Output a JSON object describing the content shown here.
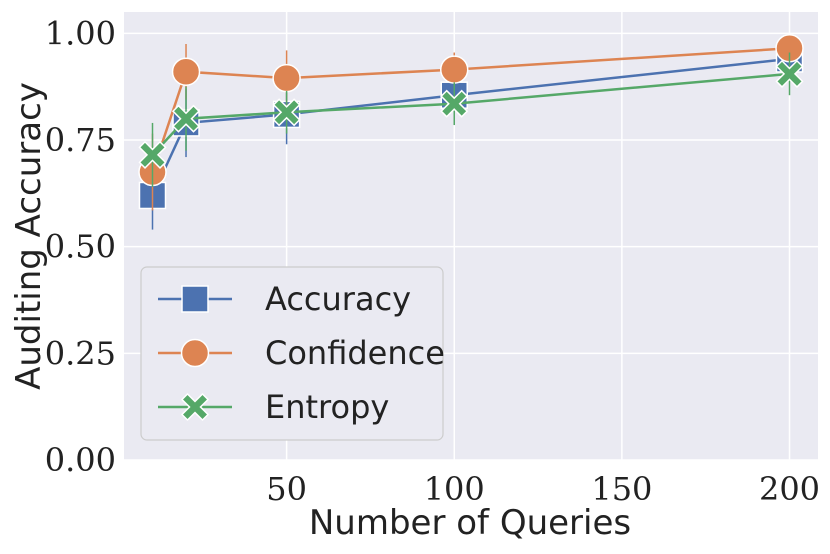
{
  "chart_data": {
    "type": "line",
    "title": "",
    "xlabel": "Number of Queries",
    "ylabel": "Auditing Accuracy",
    "xlim": [
      0,
      210
    ],
    "ylim": [
      0.0,
      1.05
    ],
    "x_ticks": [
      50,
      100,
      150,
      200
    ],
    "x_tick_labels": [
      "50",
      "100",
      "150",
      "200"
    ],
    "y_ticks": [
      0.0,
      0.25,
      0.5,
      0.75,
      1.0
    ],
    "y_tick_labels": [
      "0.00",
      "0.25",
      "0.50",
      "0.75",
      "1.00"
    ],
    "grid": true,
    "legend_position": "lower-left",
    "x": [
      10,
      20,
      50,
      100,
      200
    ],
    "series": [
      {
        "name": "Accuracy",
        "color": "#4c72b0",
        "marker": "square",
        "values": [
          0.62,
          0.79,
          0.81,
          0.855,
          0.94
        ],
        "error": [
          0.08,
          0.08,
          0.07,
          0.04,
          0.03
        ]
      },
      {
        "name": "Confidence",
        "color": "#dd8452",
        "marker": "circle",
        "values": [
          0.675,
          0.91,
          0.895,
          0.915,
          0.965
        ],
        "error": [
          0.09,
          0.065,
          0.065,
          0.04,
          0.02
        ]
      },
      {
        "name": "Entropy",
        "color": "#55a868",
        "marker": "x",
        "values": [
          0.715,
          0.8,
          0.815,
          0.835,
          0.905
        ],
        "error": [
          0.075,
          0.075,
          0.05,
          0.05,
          0.05
        ]
      }
    ]
  }
}
